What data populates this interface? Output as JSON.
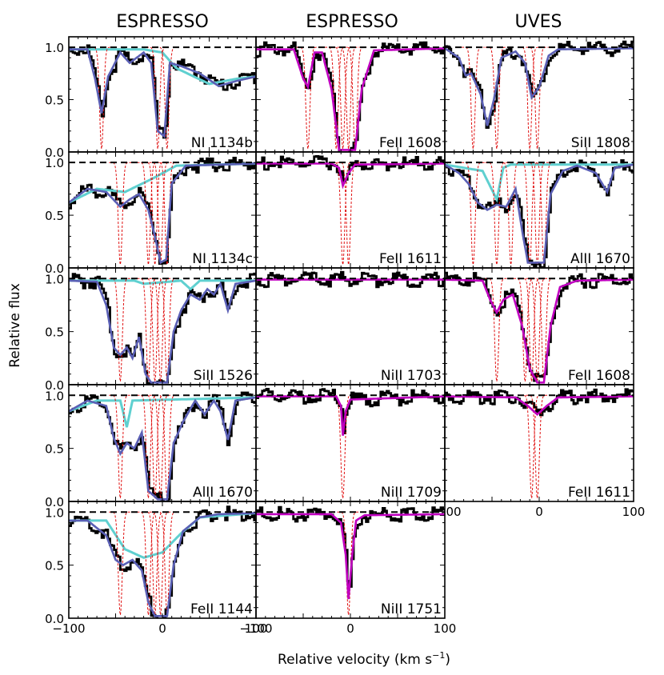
{
  "figure": {
    "column_titles": [
      "ESPRESSO",
      "ESPRESSO",
      "UVES"
    ],
    "ylabel": "Relative flux",
    "xlabel_main": "Relative velocity (km s",
    "xlabel_sup": "−1",
    "xlabel_close": ")"
  },
  "colors": {
    "data": "#000000",
    "total_fit": "#c000c0",
    "fit_blue": "#5a5fb5",
    "contaminant": "#5fd0d0",
    "components": "#e01010",
    "continuum": "#000000"
  },
  "chart_data": {
    "type": "line",
    "xlabel": "Relative velocity (km s⁻¹)",
    "ylabel": "Relative flux",
    "xlim": [
      -100,
      100
    ],
    "ylim": [
      0,
      1.1
    ],
    "x_ticks": [
      -100,
      0,
      100
    ],
    "x_tick_labels": [
      "−100",
      "0",
      "100"
    ],
    "y_ticks": [
      0,
      0.5,
      1.0
    ],
    "y_tick_labels": [
      "0.0",
      "0.5",
      "1.0"
    ],
    "panels": [
      {
        "label": "NI 1134b",
        "column": "ESPRESSO",
        "components": [
          -65,
          -5,
          5
        ],
        "fit_anchors": [
          [
            -100,
            0.98
          ],
          [
            -80,
            0.98
          ],
          [
            -72,
            0.7
          ],
          [
            -65,
            0.37
          ],
          [
            -58,
            0.72
          ],
          [
            -45,
            0.95
          ],
          [
            -35,
            0.85
          ],
          [
            -20,
            0.95
          ],
          [
            -12,
            0.85
          ],
          [
            -5,
            0.2
          ],
          [
            2,
            0.15
          ],
          [
            8,
            0.85
          ],
          [
            20,
            0.82
          ],
          [
            40,
            0.75
          ],
          [
            60,
            0.63
          ],
          [
            80,
            0.68
          ],
          [
            100,
            0.72
          ]
        ],
        "contaminant_anchors": [
          [
            -100,
            0.98
          ],
          [
            -20,
            0.98
          ],
          [
            0,
            0.95
          ],
          [
            15,
            0.8
          ],
          [
            50,
            0.65
          ],
          [
            80,
            0.7
          ],
          [
            100,
            0.72
          ]
        ]
      },
      {
        "label": "FeII 1608",
        "column": "ESPRESSO",
        "components": [
          -45,
          -15,
          -8,
          -2,
          5
        ],
        "fit_anchors": [
          [
            -100,
            0.98
          ],
          [
            -60,
            0.98
          ],
          [
            -50,
            0.7
          ],
          [
            -45,
            0.62
          ],
          [
            -38,
            0.95
          ],
          [
            -30,
            0.95
          ],
          [
            -20,
            0.6
          ],
          [
            -12,
            0.02
          ],
          [
            5,
            0.02
          ],
          [
            12,
            0.6
          ],
          [
            25,
            0.97
          ],
          [
            100,
            0.99
          ]
        ]
      },
      {
        "label": "SiII 1808",
        "column": "UVES",
        "components": [
          -70,
          -45,
          -10,
          -2
        ],
        "fit_anchors": [
          [
            -100,
            0.99
          ],
          [
            -85,
            0.9
          ],
          [
            -78,
            0.73
          ],
          [
            -72,
            0.75
          ],
          [
            -62,
            0.55
          ],
          [
            -55,
            0.25
          ],
          [
            -48,
            0.5
          ],
          [
            -40,
            0.9
          ],
          [
            -25,
            0.96
          ],
          [
            -15,
            0.85
          ],
          [
            -8,
            0.52
          ],
          [
            0,
            0.62
          ],
          [
            10,
            0.92
          ],
          [
            20,
            0.98
          ],
          [
            100,
            0.99
          ]
        ]
      },
      {
        "label": "NI 1134c",
        "column": "ESPRESSO",
        "components": [
          -45,
          -15,
          -8,
          -2,
          5
        ],
        "fit_anchors": [
          [
            -100,
            0.62
          ],
          [
            -80,
            0.75
          ],
          [
            -60,
            0.72
          ],
          [
            -45,
            0.58
          ],
          [
            -35,
            0.65
          ],
          [
            -25,
            0.7
          ],
          [
            -15,
            0.55
          ],
          [
            -8,
            0.3
          ],
          [
            -2,
            0.05
          ],
          [
            4,
            0.08
          ],
          [
            10,
            0.8
          ],
          [
            25,
            0.97
          ],
          [
            100,
            0.99
          ]
        ],
        "contaminant_anchors": [
          [
            -100,
            0.62
          ],
          [
            -70,
            0.75
          ],
          [
            -40,
            0.72
          ],
          [
            -10,
            0.85
          ],
          [
            15,
            0.97
          ],
          [
            100,
            0.99
          ]
        ]
      },
      {
        "label": "FeII 1611",
        "column": "ESPRESSO",
        "components": [
          -8,
          -2
        ],
        "fit_anchors": [
          [
            -100,
            0.99
          ],
          [
            -20,
            0.99
          ],
          [
            -12,
            0.95
          ],
          [
            -8,
            0.78
          ],
          [
            -2,
            0.9
          ],
          [
            5,
            0.98
          ],
          [
            100,
            0.99
          ]
        ]
      },
      {
        "label": "AlII 1670",
        "column": "UVES",
        "components": [
          -70,
          -45,
          -30,
          -10,
          -2,
          5
        ],
        "fit_anchors": [
          [
            -100,
            0.98
          ],
          [
            -85,
            0.9
          ],
          [
            -75,
            0.8
          ],
          [
            -65,
            0.62
          ],
          [
            -55,
            0.55
          ],
          [
            -45,
            0.6
          ],
          [
            -35,
            0.58
          ],
          [
            -25,
            0.75
          ],
          [
            -18,
            0.35
          ],
          [
            -12,
            0.05
          ],
          [
            5,
            0.05
          ],
          [
            12,
            0.7
          ],
          [
            25,
            0.92
          ],
          [
            40,
            0.97
          ],
          [
            60,
            0.9
          ],
          [
            72,
            0.72
          ],
          [
            80,
            0.95
          ],
          [
            100,
            0.98
          ]
        ],
        "contaminant_anchors": [
          [
            -100,
            0.98
          ],
          [
            -80,
            0.95
          ],
          [
            -60,
            0.92
          ],
          [
            -45,
            0.65
          ],
          [
            -38,
            0.95
          ],
          [
            -30,
            0.98
          ],
          [
            100,
            0.98
          ]
        ]
      },
      {
        "label": "SiII 1526",
        "column": "ESPRESSO",
        "components": [
          -45,
          -15,
          -8,
          -2,
          5
        ],
        "fit_anchors": [
          [
            -100,
            0.98
          ],
          [
            -70,
            0.97
          ],
          [
            -60,
            0.75
          ],
          [
            -52,
            0.35
          ],
          [
            -45,
            0.28
          ],
          [
            -38,
            0.35
          ],
          [
            -32,
            0.25
          ],
          [
            -25,
            0.45
          ],
          [
            -18,
            0.1
          ],
          [
            -12,
            0.02
          ],
          [
            5,
            0.02
          ],
          [
            12,
            0.5
          ],
          [
            20,
            0.7
          ],
          [
            30,
            0.85
          ],
          [
            40,
            0.8
          ],
          [
            48,
            0.9
          ],
          [
            55,
            0.85
          ],
          [
            62,
            0.95
          ],
          [
            70,
            0.7
          ],
          [
            78,
            0.95
          ],
          [
            100,
            0.98
          ]
        ],
        "contaminant_anchors": [
          [
            -100,
            0.98
          ],
          [
            -30,
            0.98
          ],
          [
            -20,
            0.95
          ],
          [
            20,
            0.98
          ],
          [
            30,
            0.9
          ],
          [
            40,
            0.98
          ],
          [
            100,
            0.98
          ]
        ]
      },
      {
        "label": "NiII 1703",
        "column": "ESPRESSO",
        "components": [],
        "fit_anchors": [
          [
            -100,
            0.99
          ],
          [
            100,
            0.99
          ]
        ]
      },
      {
        "label": "FeII 1608",
        "column": "UVES",
        "components": [
          -45,
          -15,
          -8,
          -2,
          5
        ],
        "fit_anchors": [
          [
            -100,
            0.99
          ],
          [
            -60,
            0.98
          ],
          [
            -52,
            0.8
          ],
          [
            -45,
            0.68
          ],
          [
            -38,
            0.8
          ],
          [
            -28,
            0.85
          ],
          [
            -18,
            0.55
          ],
          [
            -10,
            0.15
          ],
          [
            -2,
            0.02
          ],
          [
            5,
            0.02
          ],
          [
            12,
            0.55
          ],
          [
            22,
            0.92
          ],
          [
            40,
            0.98
          ],
          [
            100,
            0.99
          ]
        ]
      },
      {
        "label": "AlII 1670",
        "column": "ESPRESSO",
        "components": [
          -45,
          -15,
          -8,
          -2,
          5
        ],
        "fit_anchors": [
          [
            -100,
            0.85
          ],
          [
            -80,
            0.95
          ],
          [
            -60,
            0.9
          ],
          [
            -52,
            0.6
          ],
          [
            -45,
            0.45
          ],
          [
            -38,
            0.55
          ],
          [
            -30,
            0.5
          ],
          [
            -22,
            0.65
          ],
          [
            -15,
            0.1
          ],
          [
            -5,
            0.02
          ],
          [
            5,
            0.02
          ],
          [
            12,
            0.55
          ],
          [
            22,
            0.75
          ],
          [
            35,
            0.95
          ],
          [
            45,
            0.82
          ],
          [
            55,
            0.95
          ],
          [
            62,
            0.85
          ],
          [
            70,
            0.58
          ],
          [
            78,
            0.95
          ],
          [
            100,
            0.98
          ]
        ],
        "contaminant_anchors": [
          [
            -100,
            0.85
          ],
          [
            -70,
            0.95
          ],
          [
            -45,
            0.95
          ],
          [
            -38,
            0.7
          ],
          [
            -32,
            0.95
          ],
          [
            100,
            0.98
          ]
        ]
      },
      {
        "label": "NiII 1709",
        "column": "ESPRESSO",
        "components": [
          -8
        ],
        "fit_anchors": [
          [
            -100,
            0.99
          ],
          [
            -15,
            0.99
          ],
          [
            -10,
            0.9
          ],
          [
            -8,
            0.62
          ],
          [
            -5,
            0.85
          ],
          [
            0,
            0.96
          ],
          [
            100,
            0.99
          ]
        ]
      },
      {
        "label": "FeII 1611",
        "column": "UVES",
        "components": [
          -8,
          -2
        ],
        "fit_anchors": [
          [
            -100,
            0.99
          ],
          [
            -25,
            0.98
          ],
          [
            -12,
            0.9
          ],
          [
            -2,
            0.82
          ],
          [
            8,
            0.9
          ],
          [
            20,
            0.98
          ],
          [
            100,
            0.99
          ]
        ]
      },
      {
        "label": "FeII 1144",
        "column": "ESPRESSO",
        "components": [
          -45,
          -15,
          -8,
          -2,
          5
        ],
        "fit_anchors": [
          [
            -100,
            0.92
          ],
          [
            -80,
            0.92
          ],
          [
            -60,
            0.78
          ],
          [
            -50,
            0.55
          ],
          [
            -42,
            0.5
          ],
          [
            -32,
            0.55
          ],
          [
            -22,
            0.45
          ],
          [
            -15,
            0.15
          ],
          [
            -8,
            0.02
          ],
          [
            5,
            0.02
          ],
          [
            12,
            0.5
          ],
          [
            22,
            0.82
          ],
          [
            40,
            0.95
          ],
          [
            60,
            0.98
          ],
          [
            100,
            0.99
          ]
        ],
        "contaminant_anchors": [
          [
            -100,
            0.92
          ],
          [
            -60,
            0.92
          ],
          [
            -40,
            0.65
          ],
          [
            -20,
            0.57
          ],
          [
            0,
            0.62
          ],
          [
            20,
            0.8
          ],
          [
            40,
            0.95
          ],
          [
            100,
            0.99
          ]
        ]
      },
      {
        "label": "NiII 1751",
        "column": "ESPRESSO",
        "components": [
          -2
        ],
        "fit_anchors": [
          [
            -100,
            0.98
          ],
          [
            -20,
            0.98
          ],
          [
            -10,
            0.9
          ],
          [
            -5,
            0.6
          ],
          [
            -2,
            0.18
          ],
          [
            2,
            0.6
          ],
          [
            6,
            0.92
          ],
          [
            15,
            0.97
          ],
          [
            100,
            0.98
          ]
        ]
      }
    ]
  }
}
